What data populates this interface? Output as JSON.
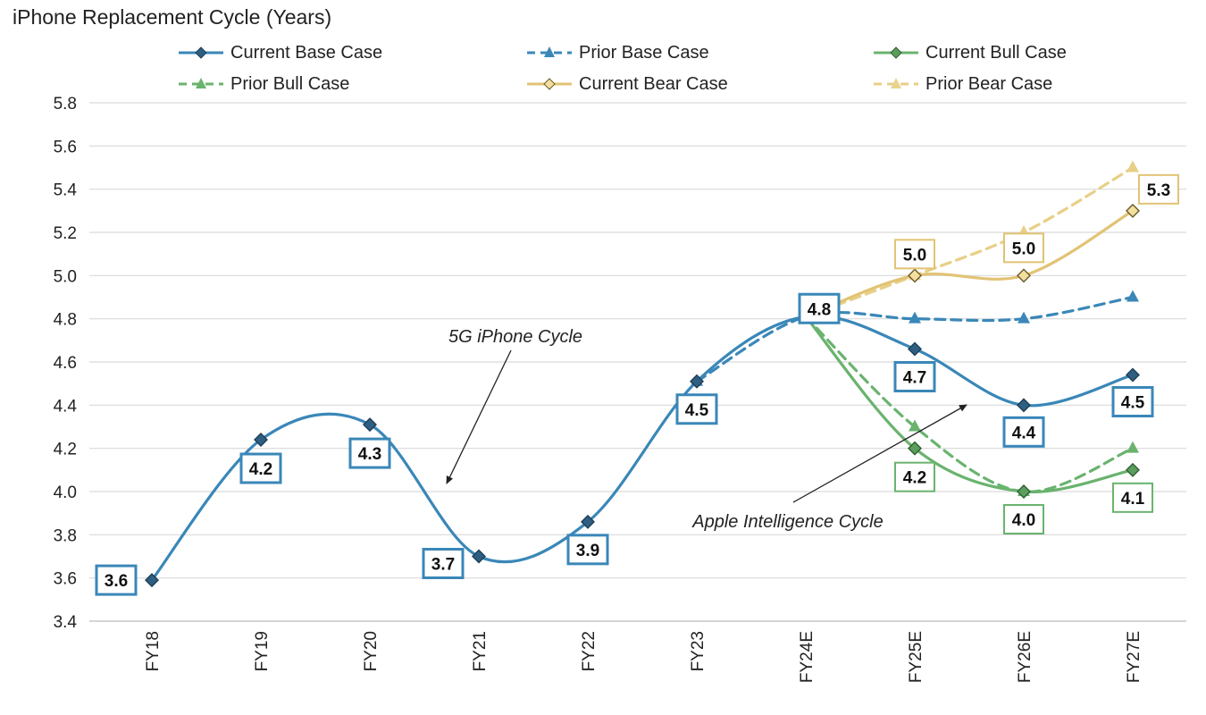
{
  "chart_data": {
    "type": "line",
    "title": "iPhone Replacement Cycle (Years)",
    "categories": [
      "FY18",
      "FY19",
      "FY20",
      "FY21",
      "FY22",
      "FY23",
      "FY24E",
      "FY25E",
      "FY26E",
      "FY27E"
    ],
    "ylim": [
      3.4,
      5.8
    ],
    "yticks": [
      "3.4",
      "3.6",
      "3.8",
      "4.0",
      "4.2",
      "4.4",
      "4.6",
      "4.8",
      "5.0",
      "5.2",
      "5.4",
      "5.6",
      "5.8"
    ],
    "grid": true,
    "series": [
      {
        "name": "Current Base Case",
        "color": "#3a87b8",
        "dash": false,
        "marker": "diamond",
        "values": [
          3.59,
          4.24,
          4.31,
          3.7,
          3.86,
          4.51,
          4.81,
          4.66,
          4.4,
          4.54
        ]
      },
      {
        "name": "Prior Base Case",
        "color": "#3a87b8",
        "dash": true,
        "marker": "triangle",
        "values": [
          null,
          null,
          null,
          null,
          null,
          4.51,
          4.81,
          4.8,
          4.8,
          4.9
        ]
      },
      {
        "name": "Current Bull Case",
        "color": "#6ab36e",
        "dash": false,
        "marker": "diamond",
        "values": [
          null,
          null,
          null,
          null,
          null,
          null,
          4.81,
          4.2,
          4.0,
          4.1
        ]
      },
      {
        "name": "Prior Bull Case",
        "color": "#6ab36e",
        "dash": true,
        "marker": "triangle",
        "values": [
          null,
          null,
          null,
          null,
          null,
          null,
          4.81,
          4.3,
          4.0,
          4.2
        ]
      },
      {
        "name": "Current Bear Case",
        "color": "#e2c374",
        "dash": false,
        "marker": "diamond",
        "values": [
          null,
          null,
          null,
          null,
          null,
          null,
          4.81,
          5.0,
          5.0,
          5.3
        ]
      },
      {
        "name": "Prior Bear Case",
        "color": "#e8cf87",
        "dash": true,
        "marker": "triangle",
        "values": [
          null,
          null,
          null,
          null,
          null,
          null,
          4.81,
          5.0,
          5.2,
          5.5
        ]
      }
    ],
    "data_labels": [
      {
        "text": "3.6",
        "category": "FY18",
        "series": "Current Base Case",
        "color": "#3a87b8"
      },
      {
        "text": "4.2",
        "category": "FY19",
        "series": "Current Base Case",
        "color": "#3a87b8"
      },
      {
        "text": "4.3",
        "category": "FY20",
        "series": "Current Base Case",
        "color": "#3a87b8"
      },
      {
        "text": "3.7",
        "category": "FY21",
        "series": "Current Base Case",
        "color": "#3a87b8"
      },
      {
        "text": "3.9",
        "category": "FY22",
        "series": "Current Base Case",
        "color": "#3a87b8"
      },
      {
        "text": "4.5",
        "category": "FY23",
        "series": "Current Base Case",
        "color": "#3a87b8"
      },
      {
        "text": "4.8",
        "category": "FY24E",
        "series": "Current Base Case",
        "color": "#3a87b8"
      },
      {
        "text": "4.7",
        "category": "FY25E",
        "series": "Current Base Case",
        "color": "#3a87b8"
      },
      {
        "text": "4.4",
        "category": "FY26E",
        "series": "Current Base Case",
        "color": "#3a87b8"
      },
      {
        "text": "4.5",
        "category": "FY27E",
        "series": "Current Base Case",
        "color": "#3a87b8"
      },
      {
        "text": "4.2",
        "category": "FY25E",
        "series": "Current Bull Case",
        "color": "#6ab36e"
      },
      {
        "text": "4.0",
        "category": "FY26E",
        "series": "Current Bull Case",
        "color": "#6ab36e"
      },
      {
        "text": "4.1",
        "category": "FY27E",
        "series": "Current Bull Case",
        "color": "#6ab36e"
      },
      {
        "text": "5.0",
        "category": "FY25E",
        "series": "Current Bear Case",
        "color": "#e2c374"
      },
      {
        "text": "5.0",
        "category": "FY26E",
        "series": "Current Bear Case",
        "color": "#e2c374"
      },
      {
        "text": "5.3",
        "category": "FY27E",
        "series": "Current Bear Case",
        "color": "#e2c374"
      }
    ],
    "annotations": [
      {
        "text": "5G iPhone Cycle",
        "category": "FY21",
        "value": 3.96
      },
      {
        "text": "Apple Intelligence Cycle",
        "category": "FY25E",
        "value": 4.42
      }
    ]
  }
}
